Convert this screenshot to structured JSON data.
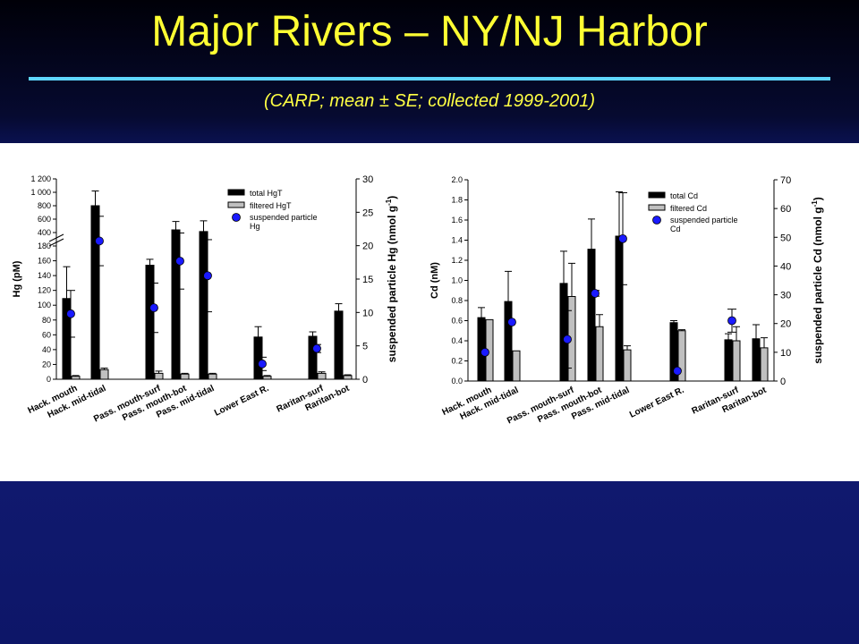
{
  "slide": {
    "title": "Major Rivers – NY/NJ Harbor",
    "subtitle": "(CARP; mean ± SE; collected 1999-2001)"
  },
  "colors": {
    "title": "#ffff33",
    "rule": "#5fd6ff",
    "background": "#0d1668",
    "total_bar": "#000000",
    "filtered_bar": "#c0c0c0",
    "particle_marker": "#1a1aff"
  },
  "chart_data": [
    {
      "type": "bar",
      "title": "",
      "categories": [
        "Hack. mouth",
        "Hack. mid-tidal",
        "Pass. mouth-surf",
        "Pass. mouth-bot",
        "Pass. mid-tidal",
        "Lower East R.",
        "Raritan-surf",
        "Raritan-bot"
      ],
      "ylabel": "Hg (pM)",
      "y2label": "suspended particle Hg (nmol g",
      "y2label_sup": "-1",
      "y2label_end": ")",
      "ylim": [
        0,
        1200
      ],
      "axis_break": [
        180,
        400
      ],
      "yticks_lower": [
        "0",
        "20",
        "40",
        "60",
        "80",
        "100",
        "120",
        "140",
        "160",
        "180"
      ],
      "yticks_upper": [
        "400",
        "600",
        "800",
        "1 000",
        "1 200"
      ],
      "y2lim": [
        0,
        30
      ],
      "y2ticks": [
        "0",
        "5",
        "10",
        "15",
        "20",
        "25",
        "30"
      ],
      "legend_position": "top-right",
      "series": [
        {
          "name": "total HgT",
          "kind": "bar",
          "values": [
            109,
            800,
            154,
            440,
            415,
            57,
            58,
            92
          ],
          "errors": [
            43,
            220,
            8,
            125,
            160,
            14,
            6,
            10
          ]
        },
        {
          "name": "filtered HgT",
          "kind": "bar",
          "values": [
            4,
            13,
            8,
            7,
            7,
            4,
            8,
            5
          ],
          "errors": [
            1,
            2,
            3,
            1,
            1,
            1,
            2,
            1
          ]
        },
        {
          "name": "suspended particle Hg",
          "kind": "point",
          "axis": "y2",
          "values": [
            9.8,
            20.7,
            10.7,
            17.7,
            15.5,
            2.3,
            4.6,
            null
          ],
          "errors": [
            3.5,
            3.7,
            3.7,
            4.2,
            5.4,
            1.0,
            0.6,
            null
          ]
        }
      ]
    },
    {
      "type": "bar",
      "title": "",
      "categories": [
        "Hack. mouth",
        "Hack. mid-tidal",
        "Pass. mouth-surf",
        "Pass. mouth-bot",
        "Pass. mid-tidal",
        "Lower East R.",
        "Raritan-surf",
        "Raritan-bot"
      ],
      "ylabel": "Cd (nM)",
      "y2label": "suspended particle Cd (nmol g",
      "y2label_sup": "-1",
      "y2label_end": ")",
      "ylim": [
        0,
        2.0
      ],
      "yticks": [
        "0.0",
        "0.2",
        "0.4",
        "0.6",
        "0.8",
        "1.0",
        "1.2",
        "1.4",
        "1.6",
        "1.8",
        "2.0"
      ],
      "y2lim": [
        0,
        70
      ],
      "y2ticks": [
        "0",
        "10",
        "20",
        "30",
        "40",
        "50",
        "60",
        "70"
      ],
      "legend_position": "top-right",
      "series": [
        {
          "name": "total Cd",
          "kind": "bar",
          "values": [
            0.63,
            0.79,
            0.97,
            1.31,
            1.44,
            0.58,
            0.41,
            0.42
          ],
          "errors": [
            0.1,
            0.3,
            0.32,
            0.3,
            0.44,
            0.02,
            0.06,
            0.14
          ]
        },
        {
          "name": "filtered Cd",
          "kind": "bar",
          "values": [
            0.61,
            0.3,
            0.84,
            0.54,
            0.31,
            0.5,
            0.4,
            0.33
          ],
          "errors": [
            0,
            0,
            0.33,
            0.12,
            0.04,
            0.01,
            0.14,
            0.1
          ]
        },
        {
          "name": "suspended particle Cd",
          "kind": "point",
          "axis": "y2",
          "values": [
            10,
            20.5,
            14.5,
            30.5,
            49.5,
            3.5,
            21,
            null
          ],
          "errors": [
            0,
            0,
            10,
            1,
            16,
            0,
            4,
            null
          ]
        }
      ]
    }
  ]
}
